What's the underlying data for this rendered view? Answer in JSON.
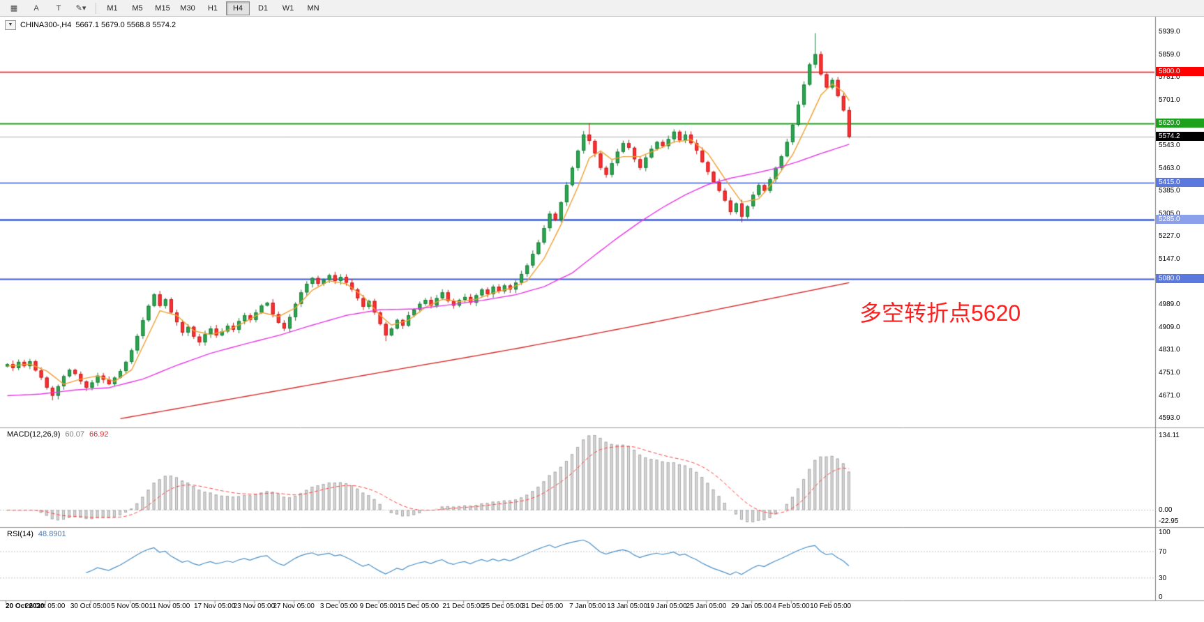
{
  "toolbar": {
    "icons": [
      {
        "name": "chart-grid-icon",
        "glyph": "▦"
      },
      {
        "name": "font-a-icon",
        "glyph": "A"
      },
      {
        "name": "text-tool-icon",
        "glyph": "T"
      },
      {
        "name": "shapes-dropdown-icon",
        "glyph": "✎▾"
      }
    ],
    "timeframes": [
      "M1",
      "M5",
      "M15",
      "M30",
      "H1",
      "H4",
      "D1",
      "W1",
      "MN"
    ],
    "active_timeframe": "H4"
  },
  "header": {
    "dropdown_glyph": "▼",
    "symbol": "CHINA300-,H4",
    "ohlc": "5667.1 5679.0 5568.8 5574.2"
  },
  "chart": {
    "annotation": {
      "text": "多空转折点5620",
      "color": "#ff1e1e"
    },
    "price_axis": [
      "5939.0",
      "5859.0",
      "5781.0",
      "5701.0",
      "5620.0",
      "5543.0",
      "5463.0",
      "5385.0",
      "5305.0",
      "5227.0",
      "5147.0",
      "5069.0",
      "4989.0",
      "4909.0",
      "4831.0",
      "4751.0",
      "4671.0",
      "4593.0"
    ],
    "levels": [
      {
        "price": 5800.0,
        "label": "5800.0",
        "color": "#ff0000",
        "width": 1.5,
        "tag_bg": "#ff0000"
      },
      {
        "price": 5620.0,
        "label": "5620.0",
        "color": "#1ca11c",
        "width": 2,
        "tag_bg": "#1ca11c"
      },
      {
        "price": 5574.2,
        "label": "5574.2",
        "color": "#aaaaaa",
        "width": 1,
        "tag_bg": "#000000"
      },
      {
        "price": 5415.0,
        "label": "5415.0",
        "color": "#3c5ad0",
        "width": 1.5,
        "tag_bg": "#5a78dd"
      },
      {
        "price": 5285.0,
        "label": "5285.0",
        "color": "#3c5ad0",
        "width": 2.5,
        "tag_bg": "#8aa0ea"
      },
      {
        "price": 5080.0,
        "label": "5080.0",
        "color": "#3c5ad0",
        "width": 2,
        "tag_bg": "#5a78dd"
      }
    ],
    "time_axis": [
      {
        "i": 0,
        "label": "20 Oct 2020"
      },
      {
        "i": 7,
        "label": "26 Oct 05:00"
      },
      {
        "i": 15,
        "label": "30 Oct 05:00"
      },
      {
        "i": 22,
        "label": "5 Nov 05:00"
      },
      {
        "i": 29,
        "label": "11 Nov 05:00"
      },
      {
        "i": 37,
        "label": "17 Nov 05:00"
      },
      {
        "i": 44,
        "label": "23 Nov 05:00"
      },
      {
        "i": 51,
        "label": "27 Nov 05:00"
      },
      {
        "i": 59,
        "label": "3 Dec 05:00"
      },
      {
        "i": 66,
        "label": "9 Dec 05:00"
      },
      {
        "i": 73,
        "label": "15 Dec 05:00"
      },
      {
        "i": 81,
        "label": "21 Dec 05:00"
      },
      {
        "i": 88,
        "label": "25 Dec 05:00"
      },
      {
        "i": 95,
        "label": "31 Dec 05:00"
      },
      {
        "i": 103,
        "label": "7 Jan 05:00"
      },
      {
        "i": 110,
        "label": "13 Jan 05:00"
      },
      {
        "i": 117,
        "label": "19 Jan 05:00"
      },
      {
        "i": 124,
        "label": "25 Jan 05:00"
      },
      {
        "i": 132,
        "label": "29 Jan 05:00"
      },
      {
        "i": 139,
        "label": "4 Feb 05:00"
      },
      {
        "i": 146,
        "label": "10 Feb 05:00"
      }
    ]
  },
  "chart_data": {
    "type": "candlestick",
    "symbol": "CHINA300-",
    "timeframe": "H4",
    "current_bar": {
      "open": 5667.1,
      "high": 5679.0,
      "low": 5568.8,
      "close": 5574.2
    },
    "ylim": [
      4593,
      5939
    ],
    "closes": [
      4782,
      4768,
      4790,
      4775,
      4792,
      4760,
      4735,
      4700,
      4672,
      4705,
      4740,
      4762,
      4748,
      4722,
      4700,
      4718,
      4742,
      4728,
      4712,
      4735,
      4758,
      4790,
      4830,
      4880,
      4935,
      4985,
      5025,
      4985,
      5008,
      4962,
      4928,
      4892,
      4912,
      4878,
      4858,
      4886,
      4906,
      4882,
      4896,
      4916,
      4902,
      4932,
      4952,
      4936,
      4962,
      4986,
      4996,
      4956,
      4926,
      4906,
      4946,
      4992,
      5032,
      5062,
      5082,
      5062,
      5076,
      5092,
      5072,
      5086,
      5066,
      5042,
      5012,
      4982,
      5002,
      4962,
      4922,
      4882,
      4906,
      4936,
      4916,
      4952,
      4972,
      4992,
      5006,
      4986,
      5012,
      5032,
      5002,
      4986,
      5006,
      5016,
      4996,
      5022,
      5042,
      5026,
      5052,
      5036,
      5056,
      5042,
      5066,
      5096,
      5126,
      5166,
      5206,
      5256,
      5306,
      5286,
      5346,
      5406,
      5466,
      5526,
      5582,
      5560,
      5516,
      5466,
      5442,
      5482,
      5522,
      5552,
      5536,
      5496,
      5466,
      5502,
      5532,
      5556,
      5542,
      5566,
      5592,
      5562,
      5582,
      5552,
      5526,
      5486,
      5452,
      5416,
      5386,
      5352,
      5312,
      5342,
      5296,
      5332,
      5372,
      5406,
      5386,
      5426,
      5466,
      5506,
      5556,
      5616,
      5686,
      5756,
      5826,
      5862,
      5792,
      5746,
      5772,
      5716,
      5666,
      5574.2
    ],
    "open_overrides": {
      "149": 5667.1
    },
    "wick_overrides": {
      "8": {
        "low": 4656
      },
      "67": {
        "low": 4862
      },
      "103": {
        "high": 5622
      },
      "130": {
        "low": 5276
      },
      "143": {
        "high": 5935
      },
      "149": {
        "high": 5679.0,
        "low": 5568.8
      }
    },
    "moving_averages": [
      {
        "name": "fast",
        "color": "#f0a030",
        "points": [
          [
            0,
            4775
          ],
          [
            4,
            4782
          ],
          [
            7,
            4758
          ],
          [
            10,
            4712
          ],
          [
            13,
            4730
          ],
          [
            16,
            4741
          ],
          [
            19,
            4722
          ],
          [
            22,
            4762
          ],
          [
            25,
            4885
          ],
          [
            27,
            4968
          ],
          [
            30,
            4952
          ],
          [
            33,
            4898
          ],
          [
            36,
            4885
          ],
          [
            39,
            4900
          ],
          [
            42,
            4928
          ],
          [
            45,
            4962
          ],
          [
            48,
            4948
          ],
          [
            51,
            4978
          ],
          [
            54,
            5040
          ],
          [
            57,
            5072
          ],
          [
            60,
            5062
          ],
          [
            63,
            5018
          ],
          [
            66,
            4952
          ],
          [
            68,
            4918
          ],
          [
            71,
            4935
          ],
          [
            74,
            4980
          ],
          [
            77,
            5008
          ],
          [
            80,
            5000
          ],
          [
            83,
            5008
          ],
          [
            86,
            5030
          ],
          [
            89,
            5046
          ],
          [
            92,
            5072
          ],
          [
            95,
            5150
          ],
          [
            98,
            5268
          ],
          [
            101,
            5400
          ],
          [
            103,
            5500
          ],
          [
            105,
            5525
          ],
          [
            107,
            5495
          ],
          [
            109,
            5505
          ],
          [
            112,
            5505
          ],
          [
            115,
            5530
          ],
          [
            118,
            5556
          ],
          [
            121,
            5564
          ],
          [
            124,
            5516
          ],
          [
            127,
            5428
          ],
          [
            130,
            5346
          ],
          [
            133,
            5358
          ],
          [
            136,
            5428
          ],
          [
            139,
            5512
          ],
          [
            142,
            5635
          ],
          [
            144,
            5720
          ],
          [
            146,
            5758
          ],
          [
            148,
            5730
          ],
          [
            149,
            5700
          ]
        ]
      },
      {
        "name": "mid",
        "color": "#e838e8",
        "points": [
          [
            0,
            4672
          ],
          [
            6,
            4678
          ],
          [
            12,
            4692
          ],
          [
            18,
            4700
          ],
          [
            24,
            4730
          ],
          [
            30,
            4778
          ],
          [
            36,
            4820
          ],
          [
            42,
            4852
          ],
          [
            48,
            4882
          ],
          [
            54,
            4918
          ],
          [
            60,
            4952
          ],
          [
            66,
            4972
          ],
          [
            72,
            4974
          ],
          [
            78,
            4988
          ],
          [
            84,
            5004
          ],
          [
            90,
            5024
          ],
          [
            95,
            5052
          ],
          [
            100,
            5100
          ],
          [
            104,
            5162
          ],
          [
            108,
            5222
          ],
          [
            112,
            5278
          ],
          [
            116,
            5328
          ],
          [
            120,
            5372
          ],
          [
            124,
            5408
          ],
          [
            128,
            5430
          ],
          [
            132,
            5446
          ],
          [
            136,
            5464
          ],
          [
            140,
            5488
          ],
          [
            144,
            5516
          ],
          [
            149,
            5548
          ]
        ]
      },
      {
        "name": "slow",
        "color": "#d92b2b",
        "points": [
          [
            20,
            4592
          ],
          [
            30,
            4627
          ],
          [
            40,
            4662
          ],
          [
            50,
            4697
          ],
          [
            60,
            4732
          ],
          [
            70,
            4767
          ],
          [
            80,
            4801
          ],
          [
            90,
            4836
          ],
          [
            100,
            4873
          ],
          [
            110,
            4911
          ],
          [
            120,
            4950
          ],
          [
            130,
            4990
          ],
          [
            140,
            5030
          ],
          [
            149,
            5066
          ]
        ]
      }
    ],
    "indicators": {
      "macd": {
        "label": "MACD(12,26,9)",
        "value_main": "60.07",
        "value_signal": "66.92",
        "fast": 12,
        "slow": 26,
        "signal": 9,
        "axis": [
          "134.11",
          "0.00",
          "-22.95"
        ],
        "hist_fill": "#d9d9d9",
        "hist_stroke": "#a9a9a9",
        "signal_color": "#ff4545"
      },
      "rsi": {
        "label": "RSI(14)",
        "value": "48.8901",
        "period": 14,
        "axis": [
          "100",
          "70",
          "30",
          "0"
        ],
        "levels": [
          70,
          30
        ],
        "line_color": "#4a90c8"
      }
    },
    "colors": {
      "up": "#2aa84f",
      "up_border": "#1b7a39",
      "down": "#ff3032",
      "down_border": "#c21d1d",
      "separator": "#9a9a9a",
      "axis_line": "#808080"
    }
  }
}
